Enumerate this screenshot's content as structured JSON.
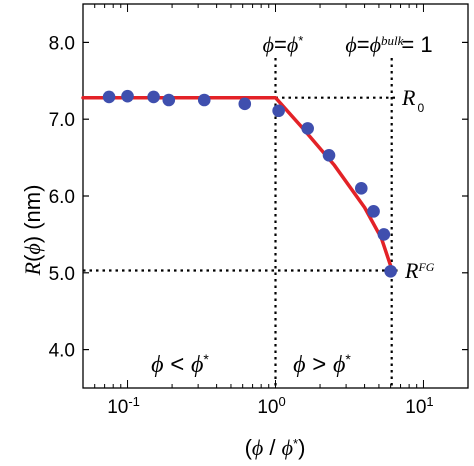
{
  "chart_data": {
    "type": "scatter",
    "x_scale": "log",
    "xlim": [
      0.05,
      20
    ],
    "ylim": [
      3.5,
      8.5
    ],
    "x_ticks": [
      {
        "value": 0.1,
        "base": "10",
        "exp": "-1"
      },
      {
        "value": 1,
        "base": "10",
        "exp": "0"
      },
      {
        "value": 10,
        "base": "10",
        "exp": "1"
      }
    ],
    "y_ticks": [
      {
        "value": 4.0,
        "label": "4.0"
      },
      {
        "value": 5.0,
        "label": "5.0"
      },
      {
        "value": 6.0,
        "label": "6.0"
      },
      {
        "value": 7.0,
        "label": "7.0"
      },
      {
        "value": 8.0,
        "label": "8.0"
      }
    ],
    "ylabel": {
      "r": "R",
      "phi": "ϕ",
      "unit": "(nm)"
    },
    "xlabel": {
      "open": "(",
      "phi1": "ϕ",
      "slash": " / ",
      "phi2": "ϕ",
      "star": "*",
      "close": ")"
    },
    "points": [
      {
        "x": 0.075,
        "y": 7.29
      },
      {
        "x": 0.1,
        "y": 7.3
      },
      {
        "x": 0.15,
        "y": 7.29
      },
      {
        "x": 0.19,
        "y": 7.25
      },
      {
        "x": 0.33,
        "y": 7.25
      },
      {
        "x": 0.62,
        "y": 7.2
      },
      {
        "x": 1.05,
        "y": 7.11
      },
      {
        "x": 1.65,
        "y": 6.88
      },
      {
        "x": 2.3,
        "y": 6.53
      },
      {
        "x": 3.8,
        "y": 6.1
      },
      {
        "x": 4.6,
        "y": 5.8
      },
      {
        "x": 5.4,
        "y": 5.5
      },
      {
        "x": 6.0,
        "y": 5.02
      }
    ],
    "fit_line": [
      {
        "x": 0.05,
        "y": 7.28
      },
      {
        "x": 0.5,
        "y": 7.28
      },
      {
        "x": 1.0,
        "y": 7.28
      },
      {
        "x": 1.5,
        "y": 6.9
      },
      {
        "x": 2.5,
        "y": 6.4
      },
      {
        "x": 4.0,
        "y": 5.85
      },
      {
        "x": 5.2,
        "y": 5.45
      },
      {
        "x": 6.1,
        "y": 5.05
      }
    ],
    "vlines": [
      {
        "x": 1.0,
        "label": {
          "lhs": "ϕ",
          "eq": "=",
          "rhs": "ϕ",
          "sup": "*"
        }
      },
      {
        "x": 6.1,
        "label": {
          "lhs": "ϕ",
          "eq": "=",
          "rhs": "ϕ",
          "sup": "bulk",
          "tail": "= 1"
        }
      }
    ],
    "hlines": [
      {
        "y": 7.28,
        "x_start": 1.0,
        "label": {
          "main": "R",
          "sub": "0"
        }
      },
      {
        "y": 5.03,
        "x_start": 0.05,
        "label": {
          "main": "R",
          "sup": "FG"
        }
      }
    ],
    "regions": [
      {
        "lhs": "ϕ",
        "op": " < ",
        "rhs": "ϕ",
        "sup": "*"
      },
      {
        "lhs": "ϕ",
        "op": " > ",
        "rhs": "ϕ",
        "sup": "*"
      }
    ],
    "colors": {
      "points": "#3f4fae",
      "fit_line": "#e32227",
      "axes": "#000000"
    }
  }
}
